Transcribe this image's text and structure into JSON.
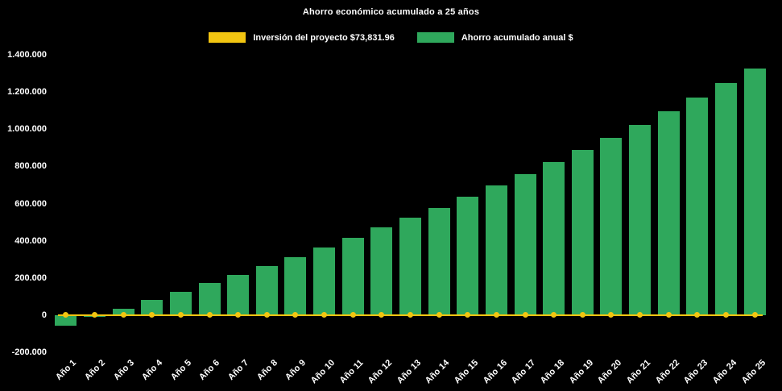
{
  "title": "Ahorro económico acumulado a 25 años",
  "legend": [
    {
      "label": "Inversión del proyecto $73,831.96",
      "color": "#f2c511",
      "type": "line"
    },
    {
      "label": "Ahorro acumulado anual $",
      "color": "#2fa85c",
      "type": "bar"
    }
  ],
  "chart_data": {
    "type": "bar",
    "title": "Ahorro económico acumulado a 25 años",
    "xlabel": "",
    "ylabel": "",
    "background": "#000000",
    "text_color": "#ffffff",
    "grid": false,
    "legend_position": "top",
    "ylim": [
      -200000,
      1400000
    ],
    "yticks": [
      {
        "value": -200000,
        "label": "-200.000"
      },
      {
        "value": 0,
        "label": "0"
      },
      {
        "value": 200000,
        "label": "200.000"
      },
      {
        "value": 400000,
        "label": "400.000"
      },
      {
        "value": 600000,
        "label": "600.000"
      },
      {
        "value": 800000,
        "label": "800.000"
      },
      {
        "value": 1000000,
        "label": "1.000.000"
      },
      {
        "value": 1200000,
        "label": "1.200.000"
      },
      {
        "value": 1400000,
        "label": "1.400.000"
      }
    ],
    "categories": [
      "Año 1",
      "Año 2",
      "Año 3",
      "Año 4",
      "Año 5",
      "Año 6",
      "Año 7",
      "Año 8",
      "Año 9",
      "Año 10",
      "Año 11",
      "Año 12",
      "Año 13",
      "Año 14",
      "Año 15",
      "Año 16",
      "Año 17",
      "Año 18",
      "Año 19",
      "Año 20",
      "Año 21",
      "Año 22",
      "Año 23",
      "Año 24",
      "Año 25"
    ],
    "series": [
      {
        "name": "Ahorro acumulado anual $",
        "type": "bar",
        "color": "#2fa85c",
        "values": [
          -55000,
          -8000,
          35000,
          80000,
          126000,
          174000,
          217000,
          265000,
          313000,
          365000,
          417000,
          470000,
          526000,
          578000,
          639000,
          696000,
          757000,
          822000,
          887000,
          952000,
          1022000,
          1096000,
          1170000,
          1248000,
          1326000
        ]
      },
      {
        "name": "Inversión del proyecto $73,831.96",
        "type": "line",
        "color": "#f2c511",
        "values": [
          0,
          0,
          0,
          0,
          0,
          0,
          0,
          0,
          0,
          0,
          0,
          0,
          0,
          0,
          0,
          0,
          0,
          0,
          0,
          0,
          0,
          0,
          0,
          0,
          0
        ]
      }
    ]
  }
}
